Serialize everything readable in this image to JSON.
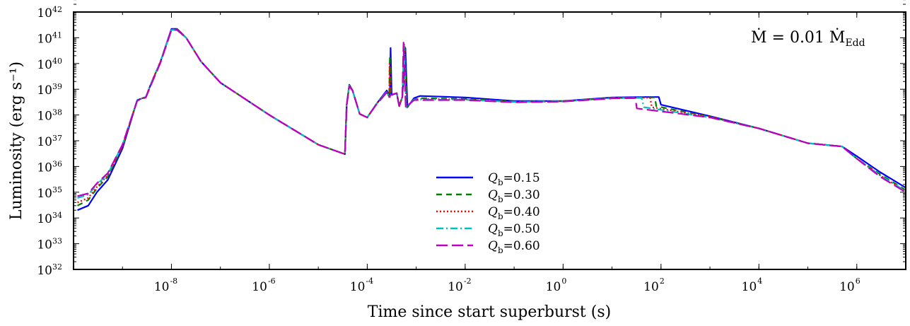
{
  "chart_data": {
    "type": "line",
    "xlabel": "Time since start superburst (s)",
    "ylabel": "Luminosity (erg s⁻¹)",
    "xscale": "log",
    "yscale": "log",
    "xlim": [
      1e-10,
      10000000.0
    ],
    "ylim": [
      1e+32,
      1e+42
    ],
    "x_ticks": [
      "10",
      "10",
      "10",
      "10",
      "10",
      "10",
      "10",
      "10"
    ],
    "x_tick_exponents": [
      "-8",
      "-6",
      "-4",
      "-2",
      "0",
      "2",
      "4",
      "6"
    ],
    "y_ticks": [
      "10",
      "10",
      "10",
      "10",
      "10",
      "10",
      "10",
      "10",
      "10",
      "10",
      "10"
    ],
    "y_tick_exponents": [
      "32",
      "33",
      "34",
      "35",
      "36",
      "37",
      "38",
      "39",
      "40",
      "41",
      "42"
    ],
    "annotation": "Ṁ = 0.01 Ṁ",
    "annotation_subscript": "Edd",
    "legend_position": "lower-center",
    "series": [
      {
        "name": "Q",
        "name_sub": "b",
        "name_value": "=0.15",
        "color": "#0000ff",
        "dash": "solid",
        "points": [
          [
            1.2e-10,
            2e+34
          ],
          [
            2e-10,
            3e+34
          ],
          [
            3e-10,
            1e+35
          ],
          [
            5e-10,
            3e+35
          ],
          [
            1e-09,
            5e+36
          ],
          [
            2e-09,
            3.8e+38
          ],
          [
            3e-09,
            5e+38
          ],
          [
            4e-09,
            2e+39
          ],
          [
            6e-09,
            1.2e+40
          ],
          [
            1e-08,
            2.2e+41
          ],
          [
            1.3e-08,
            2.2e+41
          ],
          [
            2e-08,
            1e+41
          ],
          [
            4e-08,
            1.2e+40
          ],
          [
            1e-07,
            1.8e+39
          ],
          [
            1e-06,
            1e+38
          ],
          [
            1e-05,
            7e+36
          ],
          [
            3.5e-05,
            3e+36
          ],
          [
            3.8e-05,
            2.5e+38
          ],
          [
            4.3e-05,
            1.5e+39
          ],
          [
            5e-05,
            9e+38
          ],
          [
            7e-05,
            1.1e+38
          ],
          [
            0.0001,
            8e+37
          ],
          [
            0.00015,
            2.5e+38
          ],
          [
            0.00025,
            9e+38
          ],
          [
            0.00029,
            5e+38
          ],
          [
            0.0003,
            4e+40
          ],
          [
            0.000315,
            6e+38
          ],
          [
            0.0004,
            7e+38
          ],
          [
            0.00045,
            2.2e+38
          ],
          [
            0.00052,
            5e+38
          ],
          [
            0.0006,
            4e+40
          ],
          [
            0.00066,
            2e+38
          ],
          [
            0.0009,
            4.5e+38
          ],
          [
            0.0012,
            5.5e+38
          ],
          [
            0.01,
            4.8e+38
          ],
          [
            0.1,
            3.5e+38
          ],
          [
            1,
            3.5e+38
          ],
          [
            10,
            4.8e+38
          ],
          [
            50,
            5e+38
          ],
          [
            90,
            5e+38
          ],
          [
            100,
            2.5e+38
          ],
          [
            1000.0,
            9e+37
          ],
          [
            10000.0,
            3e+37
          ],
          [
            100000.0,
            8e+36
          ],
          [
            500000.0,
            6e+36
          ],
          [
            1000000.0,
            2.5e+36
          ],
          [
            3000000.0,
            6e+35
          ],
          [
            10000000.0,
            1.5e+35
          ]
        ]
      },
      {
        "name": "Q",
        "name_sub": "b",
        "name_value": "=0.30",
        "color": "#008000",
        "dash": "8,6",
        "points": [
          [
            1.2e-10,
            3e+34
          ],
          [
            2e-10,
            5e+34
          ],
          [
            3e-10,
            1.4e+35
          ],
          [
            5e-10,
            4e+35
          ],
          [
            1e-09,
            6e+36
          ],
          [
            2e-09,
            3.8e+38
          ],
          [
            3e-09,
            5e+38
          ],
          [
            4e-09,
            2e+39
          ],
          [
            6e-09,
            1.2e+40
          ],
          [
            1e-08,
            2.1e+41
          ],
          [
            1.3e-08,
            2.1e+41
          ],
          [
            2e-08,
            1e+41
          ],
          [
            4e-08,
            1.2e+40
          ],
          [
            1e-07,
            1.8e+39
          ],
          [
            1e-06,
            1e+38
          ],
          [
            1e-05,
            7e+36
          ],
          [
            3.5e-05,
            3e+36
          ],
          [
            3.8e-05,
            2.5e+38
          ],
          [
            4.3e-05,
            1.4e+39
          ],
          [
            5e-05,
            9e+38
          ],
          [
            7e-05,
            1.1e+38
          ],
          [
            0.0001,
            8e+37
          ],
          [
            0.00015,
            2.5e+38
          ],
          [
            0.00025,
            8e+38
          ],
          [
            0.00028,
            5e+38
          ],
          [
            0.00029,
            2e+40
          ],
          [
            0.000305,
            6e+38
          ],
          [
            0.0004,
            7e+38
          ],
          [
            0.00045,
            2.2e+38
          ],
          [
            0.00052,
            5e+38
          ],
          [
            0.00058,
            5e+40
          ],
          [
            0.00064,
            2e+38
          ],
          [
            0.0009,
            4e+38
          ],
          [
            0.0012,
            4.5e+38
          ],
          [
            0.01,
            4.2e+38
          ],
          [
            0.1,
            3.3e+38
          ],
          [
            1,
            3.4e+38
          ],
          [
            10,
            4.6e+38
          ],
          [
            50,
            4.8e+38
          ],
          [
            75,
            4.8e+38
          ],
          [
            80,
            2.2e+38
          ],
          [
            1000.0,
            8.5e+37
          ],
          [
            10000.0,
            3e+37
          ],
          [
            100000.0,
            8e+36
          ],
          [
            500000.0,
            6e+36
          ],
          [
            1000000.0,
            2e+36
          ],
          [
            3000000.0,
            5e+35
          ],
          [
            10000000.0,
            1.2e+35
          ]
        ]
      },
      {
        "name": "Q",
        "name_sub": "b",
        "name_value": "=0.40",
        "color": "#ff0000",
        "dash": "2,3",
        "points": [
          [
            1.2e-10,
            4e+34
          ],
          [
            2e-10,
            6e+34
          ],
          [
            3e-10,
            1.6e+35
          ],
          [
            5e-10,
            4.5e+35
          ],
          [
            1e-09,
            6e+36
          ],
          [
            2e-09,
            3.8e+38
          ],
          [
            3e-09,
            5e+38
          ],
          [
            4e-09,
            2e+39
          ],
          [
            6e-09,
            1.2e+40
          ],
          [
            1e-08,
            2.1e+41
          ],
          [
            1.3e-08,
            2.1e+41
          ],
          [
            2e-08,
            1e+41
          ],
          [
            4e-08,
            1.2e+40
          ],
          [
            1e-07,
            1.8e+39
          ],
          [
            1e-06,
            1e+38
          ],
          [
            1e-05,
            7e+36
          ],
          [
            3.5e-05,
            3e+36
          ],
          [
            3.8e-05,
            2.5e+38
          ],
          [
            4.3e-05,
            1.4e+39
          ],
          [
            5e-05,
            9e+38
          ],
          [
            7e-05,
            1.1e+38
          ],
          [
            0.0001,
            8e+37
          ],
          [
            0.00015,
            2.5e+38
          ],
          [
            0.00025,
            8e+38
          ],
          [
            0.00028,
            5e+38
          ],
          [
            0.000285,
            1e+40
          ],
          [
            0.0003,
            6e+38
          ],
          [
            0.0004,
            7e+38
          ],
          [
            0.00045,
            2.2e+38
          ],
          [
            0.00052,
            5e+38
          ],
          [
            0.00057,
            5.5e+40
          ],
          [
            0.00063,
            2e+38
          ],
          [
            0.0009,
            4e+38
          ],
          [
            0.0012,
            4.2e+38
          ],
          [
            0.01,
            4e+38
          ],
          [
            0.1,
            3.2e+38
          ],
          [
            1,
            3.4e+38
          ],
          [
            10,
            4.5e+38
          ],
          [
            50,
            4.7e+38
          ],
          [
            60,
            4.7e+38
          ],
          [
            65,
            2e+38
          ],
          [
            1000.0,
            8.5e+37
          ],
          [
            10000.0,
            3e+37
          ],
          [
            100000.0,
            8e+36
          ],
          [
            500000.0,
            6e+36
          ],
          [
            1000000.0,
            2e+36
          ],
          [
            3000000.0,
            4.5e+35
          ],
          [
            10000000.0,
            1.1e+35
          ]
        ]
      },
      {
        "name": "Q",
        "name_sub": "b",
        "name_value": "=0.50",
        "color": "#00bfbf",
        "dash": "10,4,2,4",
        "points": [
          [
            1.2e-10,
            6e+34
          ],
          [
            2e-10,
            8e+34
          ],
          [
            3e-10,
            2e+35
          ],
          [
            5e-10,
            5e+35
          ],
          [
            1e-09,
            7e+36
          ],
          [
            2e-09,
            3.8e+38
          ],
          [
            3e-09,
            5e+38
          ],
          [
            4e-09,
            2e+39
          ],
          [
            6e-09,
            1.2e+40
          ],
          [
            1e-08,
            2e+41
          ],
          [
            1.3e-08,
            2e+41
          ],
          [
            2e-08,
            1e+41
          ],
          [
            4e-08,
            1.2e+40
          ],
          [
            1e-07,
            1.8e+39
          ],
          [
            1e-06,
            1e+38
          ],
          [
            1e-05,
            7e+36
          ],
          [
            3.5e-05,
            3e+36
          ],
          [
            3.8e-05,
            2.5e+38
          ],
          [
            4.3e-05,
            1.4e+39
          ],
          [
            5e-05,
            9e+38
          ],
          [
            7e-05,
            1.1e+38
          ],
          [
            0.0001,
            8e+37
          ],
          [
            0.00015,
            2.5e+38
          ],
          [
            0.00025,
            8e+38
          ],
          [
            0.00028,
            5e+38
          ],
          [
            0.0003,
            6e+38
          ],
          [
            0.0004,
            7e+38
          ],
          [
            0.00045,
            2.2e+38
          ],
          [
            0.00052,
            5e+38
          ],
          [
            0.00056,
            6e+40
          ],
          [
            0.00062,
            2e+38
          ],
          [
            0.0009,
            4e+38
          ],
          [
            0.0012,
            4e+38
          ],
          [
            0.01,
            3.9e+38
          ],
          [
            0.1,
            3.2e+38
          ],
          [
            1,
            3.4e+38
          ],
          [
            10,
            4.5e+38
          ],
          [
            35,
            4.6e+38
          ],
          [
            40,
            4.6e+38
          ],
          [
            45,
            2e+38
          ],
          [
            1000.0,
            8e+37
          ],
          [
            10000.0,
            3e+37
          ],
          [
            100000.0,
            8e+36
          ],
          [
            500000.0,
            6e+36
          ],
          [
            1000000.0,
            2e+36
          ],
          [
            3000000.0,
            4.5e+35
          ],
          [
            10000000.0,
            1.1e+35
          ]
        ]
      },
      {
        "name": "Q",
        "name_sub": "b",
        "name_value": "=0.60",
        "color": "#bf00bf",
        "dash": "16,6",
        "points": [
          [
            1.2e-10,
            7e+34
          ],
          [
            2e-10,
            9e+34
          ],
          [
            3e-10,
            2.2e+35
          ],
          [
            5e-10,
            5.5e+35
          ],
          [
            1e-09,
            7e+36
          ],
          [
            2e-09,
            3.6e+38
          ],
          [
            3e-09,
            4.8e+38
          ],
          [
            4e-09,
            1.8e+39
          ],
          [
            6e-09,
            1.1e+40
          ],
          [
            1e-08,
            2e+41
          ],
          [
            1.3e-08,
            2e+41
          ],
          [
            2e-08,
            1e+41
          ],
          [
            4e-08,
            1.2e+40
          ],
          [
            1e-07,
            1.8e+39
          ],
          [
            1e-06,
            1e+38
          ],
          [
            1e-05,
            7e+36
          ],
          [
            3.5e-05,
            3e+36
          ],
          [
            3.8e-05,
            2.4e+38
          ],
          [
            4.3e-05,
            1.3e+39
          ],
          [
            5e-05,
            9e+38
          ],
          [
            7e-05,
            1.1e+38
          ],
          [
            0.0001,
            8e+37
          ],
          [
            0.00015,
            2.4e+38
          ],
          [
            0.00025,
            7.5e+38
          ],
          [
            0.00028,
            5e+38
          ],
          [
            0.0003,
            6e+38
          ],
          [
            0.0004,
            7e+38
          ],
          [
            0.00045,
            2.2e+38
          ],
          [
            0.00052,
            5e+38
          ],
          [
            0.00055,
            6.5e+40
          ],
          [
            0.00061,
            2e+38
          ],
          [
            0.0009,
            3.8e+38
          ],
          [
            0.0012,
            3.8e+38
          ],
          [
            0.01,
            3.8e+38
          ],
          [
            0.1,
            3.1e+38
          ],
          [
            1,
            3.3e+38
          ],
          [
            10,
            4.4e+38
          ],
          [
            30,
            4.5e+38
          ],
          [
            32,
            1.8e+38
          ],
          [
            1000.0,
            8e+37
          ],
          [
            10000.0,
            3e+37
          ],
          [
            100000.0,
            8e+36
          ],
          [
            500000.0,
            6e+36
          ],
          [
            1000000.0,
            2e+36
          ],
          [
            3000000.0,
            4e+35
          ],
          [
            10000000.0,
            1e+35
          ]
        ]
      }
    ]
  }
}
